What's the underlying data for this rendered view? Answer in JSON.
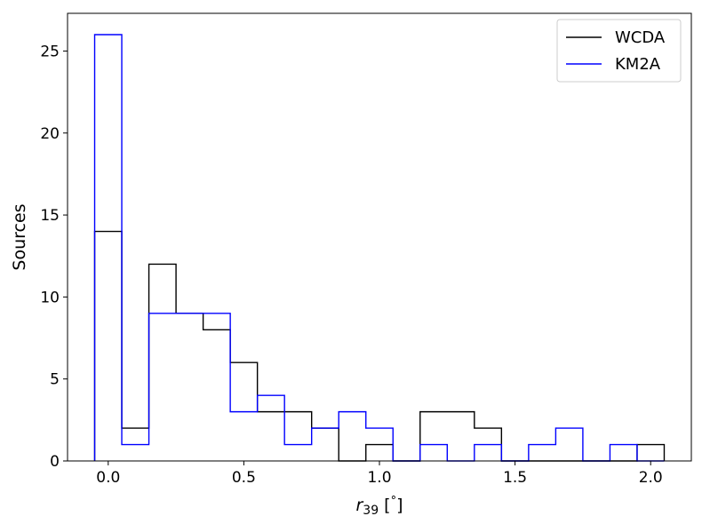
{
  "chart_data": {
    "type": "histogram",
    "xlabel_main": "r",
    "xlabel_sub": "39",
    "xlabel_unit_open": " [",
    "xlabel_unit_deg": "°",
    "xlabel_unit_close": "]",
    "ylabel": "Sources",
    "xlim": [
      -0.15,
      2.15
    ],
    "ylim": [
      0,
      27.3
    ],
    "x_ticks": [
      0.0,
      0.5,
      1.0,
      1.5,
      2.0
    ],
    "x_tick_labels": [
      "0.0",
      "0.5",
      "1.0",
      "1.5",
      "2.0"
    ],
    "y_ticks": [
      0,
      5,
      10,
      15,
      20,
      25
    ],
    "y_tick_labels": [
      "0",
      "5",
      "10",
      "15",
      "20",
      "25"
    ],
    "bin_edges": [
      -0.05,
      0.05,
      0.15,
      0.25,
      0.35,
      0.45,
      0.55,
      0.65,
      0.75,
      0.85,
      0.95,
      1.05,
      1.15,
      1.25,
      1.35,
      1.45,
      1.55,
      1.65,
      1.75,
      1.85,
      1.95,
      2.05
    ],
    "series": [
      {
        "name": "WCDA",
        "color": "#000000",
        "counts": [
          14,
          2,
          12,
          9,
          8,
          6,
          3,
          3,
          2,
          0,
          1,
          0,
          3,
          3,
          2,
          0,
          0,
          0,
          0,
          0,
          1
        ]
      },
      {
        "name": "KM2A",
        "color": "#0000ff",
        "counts": [
          26,
          1,
          9,
          9,
          9,
          3,
          4,
          1,
          2,
          3,
          2,
          0,
          1,
          0,
          1,
          0,
          1,
          2,
          0,
          1,
          0
        ]
      }
    ],
    "legend_position": "top-right",
    "grid": false
  }
}
